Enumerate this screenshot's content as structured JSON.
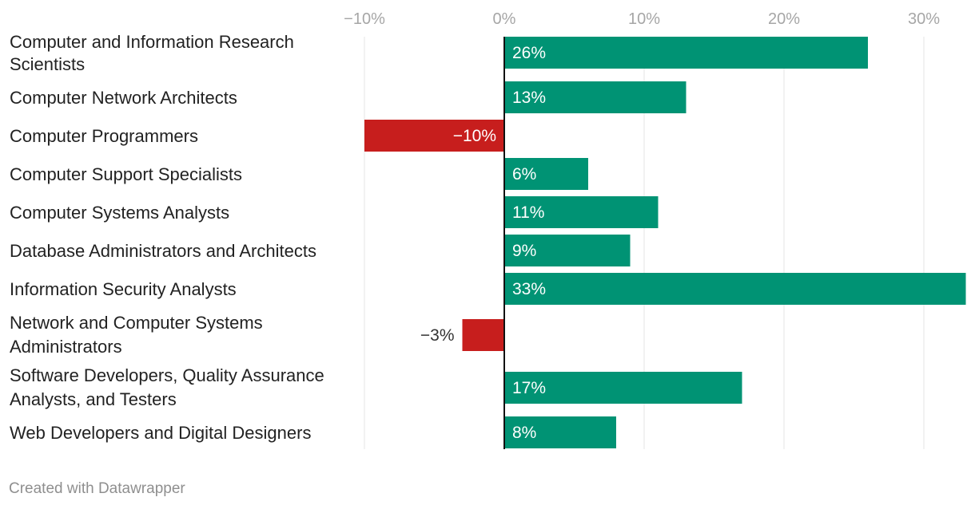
{
  "chart_data": {
    "type": "bar",
    "orientation": "horizontal",
    "x_ticks": [
      -10,
      0,
      10,
      20,
      30
    ],
    "x_tick_labels": [
      "−10%",
      "0%",
      "10%",
      "20%",
      "30%"
    ],
    "xlim": [
      -10,
      33
    ],
    "grid": true,
    "categories": [
      [
        "Computer and Information Research",
        "Scientists"
      ],
      [
        "Computer Network Architects"
      ],
      [
        "Computer Programmers"
      ],
      [
        "Computer Support Specialists"
      ],
      [
        "Computer Systems Analysts"
      ],
      [
        "Database Administrators and Architects"
      ],
      [
        "Information Security Analysts"
      ],
      [
        "Network and Computer Systems",
        "Administrators"
      ],
      [
        "Software Developers, Quality Assurance",
        "Analysts, and Testers"
      ],
      [
        "Web Developers and Digital Designers"
      ]
    ],
    "values": [
      26,
      13,
      -10,
      6,
      11,
      9,
      33,
      -3,
      17,
      8
    ],
    "value_labels": [
      "26%",
      "13%",
      "−10%",
      "6%",
      "11%",
      "9%",
      "33%",
      "−3%",
      "17%",
      "8%"
    ],
    "colors": {
      "positive": "#009374",
      "negative": "#c71e1d",
      "zero_line": "#111111",
      "grid": "#e6e6e6"
    }
  },
  "footer": {
    "credit": "Created with Datawrapper"
  }
}
